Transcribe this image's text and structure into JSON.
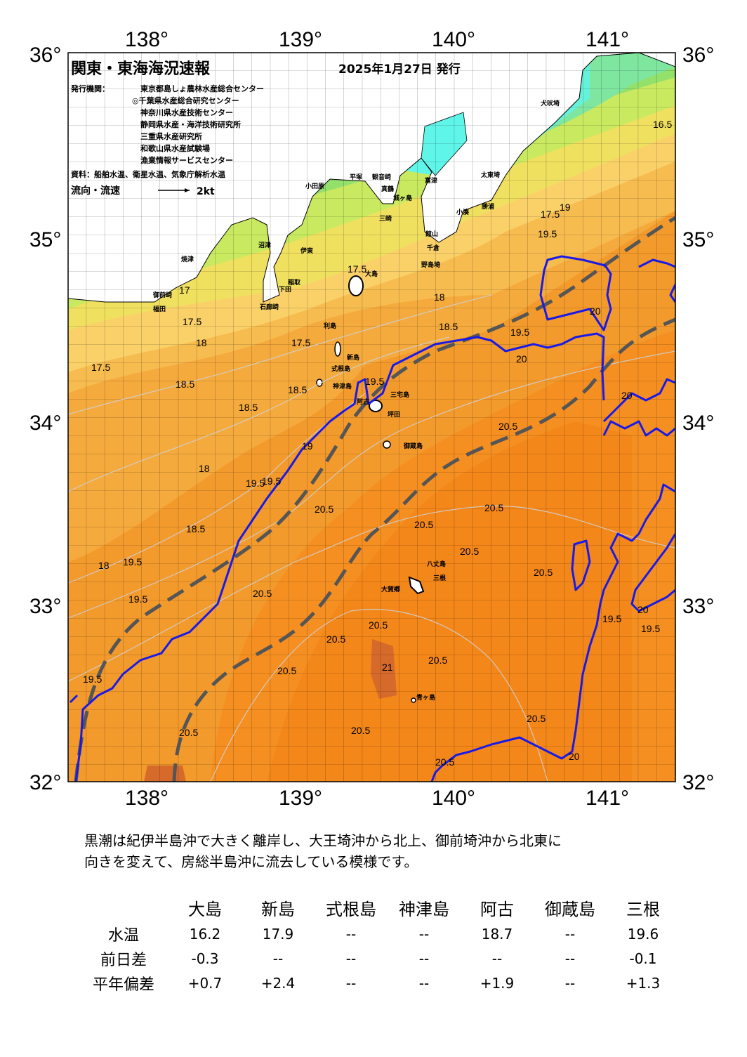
{
  "header": {
    "title": "関東・東海海況速報",
    "date": "2025年1月27日 発行",
    "issuer_label": "発行機関：",
    "issuers": [
      "東京都島しょ農林水産総合センター",
      "◎千葉県水産総合研究センター",
      "神奈川県水産技術センター",
      "静岡県水産・海洋技術研究所",
      "三重県水産研究所",
      "和歌山県水産試験場",
      "漁業情報サービスセンター"
    ],
    "source": "資料：船舶水温、衛星水温、気象庁解析水温",
    "flow_label": "流向・流速",
    "flow_scale": "2kt"
  },
  "axes": {
    "lon_labels": [
      "138°",
      "139°",
      "140°",
      "141°"
    ],
    "lat_labels": [
      "36°",
      "35°",
      "34°",
      "33°",
      "32°"
    ]
  },
  "isotherm_labels": [
    "16.5",
    "17",
    "17.5",
    "18",
    "18.5",
    "19",
    "19.5",
    "20",
    "20.5",
    "21"
  ],
  "places": {
    "osaki": "犬吠埼",
    "taito": "太東埼",
    "katsuura": "勝浦",
    "kominato": "小湊",
    "tateyama": "館山",
    "chikura": "千倉",
    "nojima": "野島埼",
    "sunosaki": "洲崎",
    "futtsu": "富津",
    "misaki": "三崎",
    "jogashima": "城ヶ島",
    "kannonzaki": "観音崎",
    "hiratsuka": "平塚",
    "odawara": "小田原",
    "manazuru": "真鶴",
    "numazu": "沼津",
    "ito": "伊東",
    "inatori": "稲取",
    "shimoda": "下田",
    "irozaki": "石廊崎",
    "yaizu": "焼津",
    "omaezaki": "御前崎",
    "fukuda": "福田",
    "oshima": "大島",
    "toshima": "利島",
    "niijima": "新島",
    "shikinejima": "式根島",
    "kozushima": "神津島",
    "miyakejima": "三宅島",
    "ako": "阿古",
    "tsubota": "坪田",
    "mikurajima": "御蔵島",
    "hachijojima": "八丈島",
    "mitsune": "三根",
    "okago": "大賀郷",
    "aogashima": "青ヶ島"
  },
  "description": [
    "黒潮は紀伊半島沖で大きく離岸し、大王埼沖から北上、御前埼沖から北東に",
    "向きを変えて、房総半島沖に流去している模様です。"
  ],
  "table": {
    "columns": [
      "大島",
      "新島",
      "式根島",
      "神津島",
      "阿古",
      "御蔵島",
      "三根"
    ],
    "rows": [
      {
        "label": "水温",
        "values": [
          "16.2",
          "17.9",
          "--",
          "--",
          "18.7",
          "--",
          "19.6"
        ]
      },
      {
        "label": "前日差",
        "values": [
          "-0.3",
          "--",
          "--",
          "--",
          "--",
          "--",
          "-0.1"
        ]
      },
      {
        "label": "平年偏差",
        "values": [
          "+0.7",
          "+2.4",
          "--",
          "--",
          "+1.9",
          "--",
          "+1.3"
        ]
      }
    ]
  },
  "colors": {
    "warm_core": "#f5861a",
    "warm": "#f39a2c",
    "mid": "#f7b64a",
    "cool": "#fad169",
    "yellow": "#e8e95c",
    "green": "#93e06b",
    "cyan": "#5ff5e8",
    "current_blue": "#1a1ae6",
    "kuroshio_axis": "#555555"
  }
}
